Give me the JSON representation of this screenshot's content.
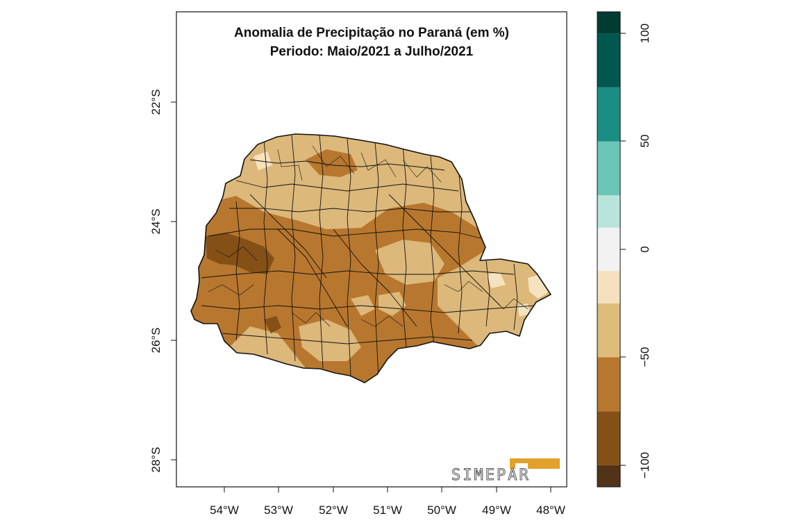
{
  "map": {
    "title_line1": "Anomalia de Precipitação no Paraná (em %)",
    "title_line2": "Periodo: Maio/2021 a Julho/2021",
    "lon_ticks": [
      "54°W",
      "53°W",
      "52°W",
      "51°W",
      "50°W",
      "49°W",
      "48°W"
    ],
    "lat_ticks": [
      "22°S",
      "24°S",
      "26°S",
      "28°S"
    ],
    "region_fill_colors": {
      "dark_brown": "#845016",
      "brown": "#b8772e",
      "tan": "#dcb87a",
      "light_tan": "#f5e2be"
    },
    "boundary_color": "#111111",
    "logo_text": "SIMEPAR",
    "logo_color": "#e3a02a"
  },
  "colorbar": {
    "bins": [
      {
        "from": -110,
        "to": -100,
        "color": "#533318"
      },
      {
        "from": -100,
        "to": -75,
        "color": "#845016"
      },
      {
        "from": -75,
        "to": -50,
        "color": "#b8772e"
      },
      {
        "from": -50,
        "to": -25,
        "color": "#dcbc78"
      },
      {
        "from": -25,
        "to": -10,
        "color": "#f5e1bf"
      },
      {
        "from": -10,
        "to": 10,
        "color": "#f2f2f2"
      },
      {
        "from": 10,
        "to": 25,
        "color": "#b9e4dc"
      },
      {
        "from": 25,
        "to": 50,
        "color": "#6bc6b8"
      },
      {
        "from": 50,
        "to": 75,
        "color": "#1b8e83"
      },
      {
        "from": 75,
        "to": 100,
        "color": "#00574f"
      },
      {
        "from": 100,
        "to": 110,
        "color": "#013b32"
      }
    ],
    "tick_labels": [
      "100",
      "50",
      "0",
      "−50",
      "−100"
    ]
  }
}
